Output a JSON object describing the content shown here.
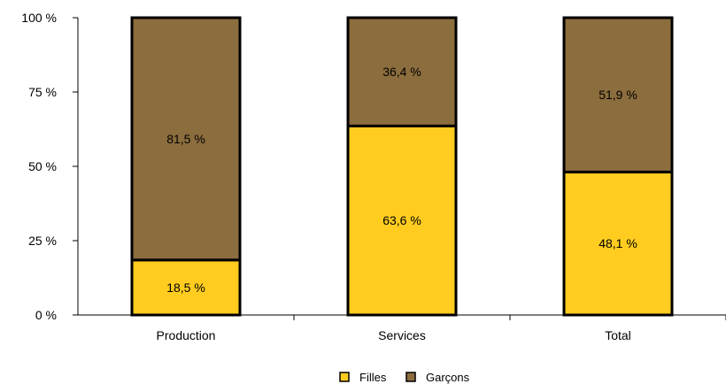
{
  "chart_data": {
    "type": "bar",
    "stacked": true,
    "categories": [
      "Production",
      "Services",
      "Total"
    ],
    "series": [
      {
        "name": "Filles",
        "values": [
          18.5,
          63.6,
          48.1
        ],
        "labels": [
          "18,5 %",
          "63,6 %",
          "48,1 %"
        ],
        "color": "#FFCC1F"
      },
      {
        "name": "Garçons",
        "values": [
          81.5,
          36.4,
          51.9
        ],
        "labels": [
          "81,5 %",
          "36,4 %",
          "51,9 %"
        ],
        "color": "#8C6D3D"
      }
    ],
    "ylim": [
      0,
      100
    ],
    "yticks": [
      0,
      25,
      50,
      75,
      100
    ],
    "ytick_labels": [
      "0 %",
      "25 %",
      "50 %",
      "75 %",
      "100 %"
    ],
    "grid": false,
    "legend_position": "bottom-center"
  }
}
